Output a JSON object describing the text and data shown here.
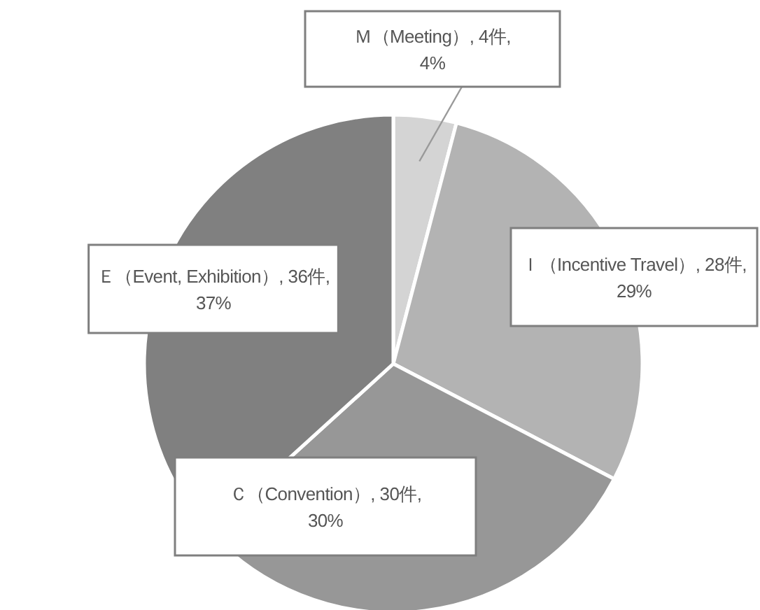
{
  "chart_data": {
    "type": "pie",
    "categories": [
      "Ｍ（Meeting）",
      "Ｉ（Incentive Travel）",
      "Ｃ（Convention）",
      "Ｅ（Event, Exhibition）"
    ],
    "values": [
      4,
      28,
      30,
      36
    ],
    "value_labels": [
      "4件,\n4%",
      "28件,\n29%",
      "30件,\n30%",
      "36件,\n37%"
    ],
    "colors": [
      "#d4d4d4",
      "#b3b3b3",
      "#979797",
      "#808080"
    ],
    "legend": false
  }
}
